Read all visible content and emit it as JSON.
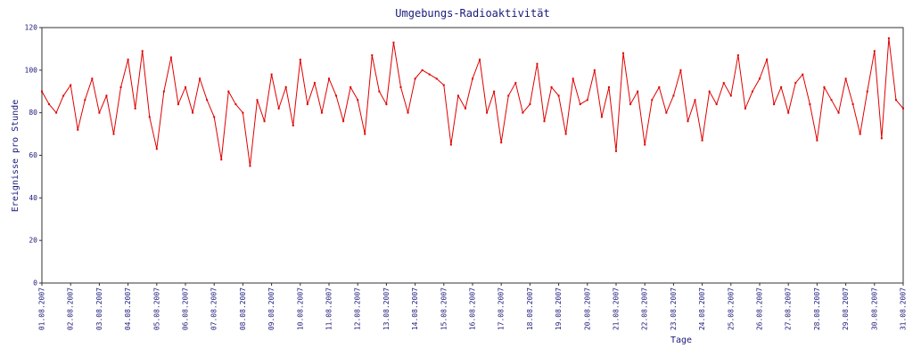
{
  "chart_data": {
    "type": "line",
    "title": "Umgebungs-Radioaktivität",
    "xlabel": "Tage",
    "ylabel": "Ereignisse pro Stunde",
    "x": [
      0,
      0.25,
      0.5,
      0.75,
      1,
      1.25,
      1.5,
      1.75,
      2,
      2.25,
      2.5,
      2.75,
      3,
      3.25,
      3.5,
      3.75,
      4,
      4.25,
      4.5,
      4.75,
      5,
      5.25,
      5.5,
      5.75,
      6,
      6.25,
      6.5,
      6.75,
      7,
      7.25,
      7.5,
      7.75,
      8,
      8.25,
      8.5,
      8.75,
      9,
      9.25,
      9.5,
      9.75,
      10,
      10.25,
      10.5,
      10.75,
      11,
      11.25,
      11.5,
      11.75,
      12,
      12.25,
      12.5,
      12.75,
      13,
      13.25,
      13.5,
      13.75,
      14,
      14.25,
      14.5,
      14.75,
      15,
      15.25,
      15.5,
      15.75,
      16,
      16.25,
      16.5,
      16.75,
      17,
      17.25,
      17.5,
      17.75,
      18,
      18.25,
      18.5,
      18.75,
      19,
      19.25,
      19.5,
      19.75,
      20,
      20.25,
      20.5,
      20.75,
      21,
      21.25,
      21.5,
      21.75,
      22,
      22.25,
      22.5,
      22.75,
      23,
      23.25,
      23.5,
      23.75,
      24,
      24.25,
      24.5,
      24.75,
      25,
      25.25,
      25.5,
      25.75,
      26,
      26.25,
      26.5,
      26.75,
      27,
      27.25,
      27.5,
      27.75,
      28,
      28.25,
      28.5,
      28.75,
      29,
      29.25,
      29.5,
      29.75,
      30
    ],
    "series": [
      {
        "name": "Ereignisse pro Stunde",
        "color": "#e00000",
        "values": [
          90,
          84,
          80,
          88,
          93,
          72,
          86,
          96,
          80,
          88,
          70,
          92,
          105,
          82,
          109,
          78,
          63,
          90,
          106,
          84,
          92,
          80,
          96,
          86,
          78,
          58,
          90,
          84,
          80,
          55,
          86,
          76,
          98,
          82,
          92,
          74,
          105,
          84,
          94,
          80,
          96,
          88,
          76,
          92,
          86,
          70,
          107,
          90,
          84,
          113,
          92,
          80,
          96,
          100,
          98,
          96,
          93,
          65,
          88,
          82,
          96,
          105,
          80,
          90,
          66,
          88,
          94,
          80,
          84,
          103,
          76,
          92,
          88,
          70,
          96,
          84,
          86,
          100,
          78,
          92,
          62,
          108,
          84,
          90,
          65,
          86,
          92,
          80,
          88,
          100,
          76,
          86,
          67,
          90,
          84,
          94,
          88,
          107,
          82,
          90,
          96,
          105,
          84,
          92,
          80,
          94,
          98,
          84,
          67,
          92,
          86,
          80,
          96,
          84,
          70,
          90,
          109,
          68,
          115,
          86,
          82
        ]
      }
    ],
    "xlim": [
      0,
      30
    ],
    "xticks": [
      {
        "value": 0,
        "label": "01.08.2007"
      },
      {
        "value": 1,
        "label": "02.08.2007"
      },
      {
        "value": 2,
        "label": "03.08.2007"
      },
      {
        "value": 3,
        "label": "04.08.2007"
      },
      {
        "value": 4,
        "label": "05.08.2007"
      },
      {
        "value": 5,
        "label": "06.08.2007"
      },
      {
        "value": 6,
        "label": "07.08.2007"
      },
      {
        "value": 7,
        "label": "08.08.2007"
      },
      {
        "value": 8,
        "label": "09.08.2007"
      },
      {
        "value": 9,
        "label": "10.08.2007"
      },
      {
        "value": 10,
        "label": "11.08.2007"
      },
      {
        "value": 11,
        "label": "12.08.2007"
      },
      {
        "value": 12,
        "label": "13.08.2007"
      },
      {
        "value": 13,
        "label": "14.08.2007"
      },
      {
        "value": 14,
        "label": "15.08.2007"
      },
      {
        "value": 15,
        "label": "16.08.2007"
      },
      {
        "value": 16,
        "label": "17.08.2007"
      },
      {
        "value": 17,
        "label": "18.08.2007"
      },
      {
        "value": 18,
        "label": "19.08.2007"
      },
      {
        "value": 19,
        "label": "20.08.2007"
      },
      {
        "value": 20,
        "label": "21.08.2007"
      },
      {
        "value": 21,
        "label": "22.08.2007"
      },
      {
        "value": 22,
        "label": "23.08.2007"
      },
      {
        "value": 23,
        "label": "24.08.2007"
      },
      {
        "value": 24,
        "label": "25.08.2007"
      },
      {
        "value": 25,
        "label": "26.08.2007"
      },
      {
        "value": 26,
        "label": "27.08.2007"
      },
      {
        "value": 27,
        "label": "28.08.2007"
      },
      {
        "value": 28,
        "label": "29.08.2007"
      },
      {
        "value": 29,
        "label": "30.08.2007"
      },
      {
        "value": 30,
        "label": "31.08.2007"
      }
    ],
    "ylim": [
      0,
      120
    ],
    "yticks": [
      0,
      20,
      40,
      60,
      80,
      100,
      120
    ],
    "grid": false
  }
}
